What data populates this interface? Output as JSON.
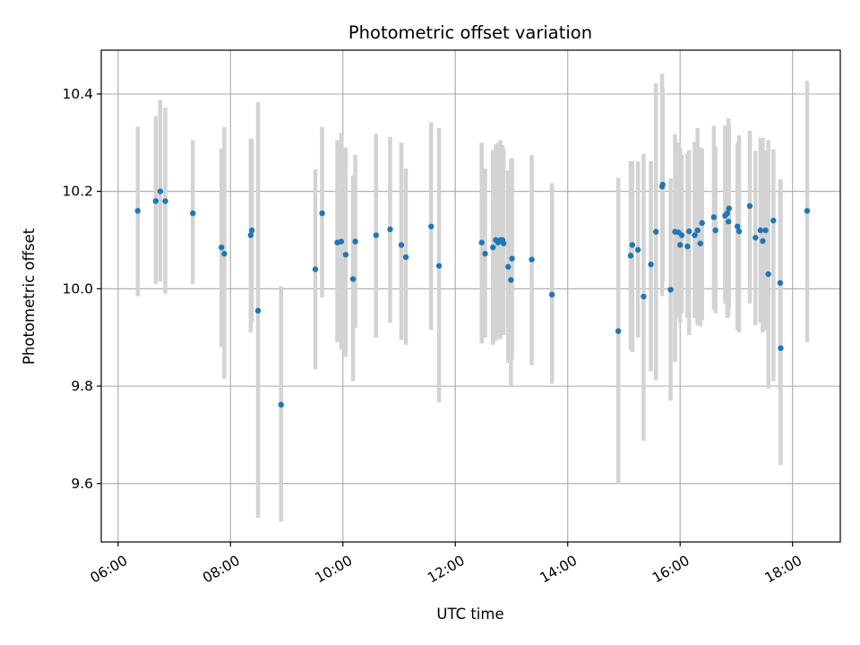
{
  "chart_data": {
    "type": "scatter",
    "title": "Photometric offset variation",
    "xlabel": "UTC time",
    "ylabel": "Photometric offset",
    "x_unit": "hours (UTC)",
    "xlim": [
      5.7,
      18.85
    ],
    "ylim": [
      9.48,
      10.49
    ],
    "grid": true,
    "x_ticks": [
      6,
      8,
      10,
      12,
      14,
      16,
      18
    ],
    "x_tick_labels": [
      "06:00",
      "08:00",
      "10:00",
      "12:00",
      "14:00",
      "16:00",
      "18:00"
    ],
    "y_ticks": [
      9.6,
      9.8,
      10.0,
      10.2,
      10.4
    ],
    "y_tick_labels": [
      "9.6",
      "9.8",
      "10.0",
      "10.2",
      "10.4"
    ],
    "colors": {
      "point": "#1f77b4",
      "errorbar": "#d3d3d3",
      "grid": "#b0b0b0"
    },
    "series": [
      {
        "x": [
          6.35,
          6.67,
          6.75,
          6.84,
          7.33,
          7.84,
          7.89,
          8.36,
          8.38,
          8.49,
          8.9,
          9.51,
          9.63,
          9.9,
          9.97,
          10.05,
          10.18,
          10.22,
          10.59,
          10.84,
          11.04,
          11.12,
          11.57,
          11.71,
          12.47,
          12.53,
          12.67,
          12.72,
          12.76,
          12.8,
          12.84,
          12.86,
          12.94,
          12.99,
          13.01,
          13.36,
          13.72,
          14.9,
          15.12,
          15.15,
          15.25,
          15.35,
          15.48,
          15.57,
          15.68,
          15.69,
          15.83,
          15.91,
          15.97,
          16.0,
          16.03,
          16.13,
          16.16,
          16.26,
          16.31,
          16.36,
          16.39,
          16.6,
          16.63,
          16.8,
          16.84,
          16.86,
          16.87,
          17.02,
          17.05,
          17.24,
          17.34,
          17.43,
          17.47,
          17.52,
          17.57,
          17.66,
          17.78,
          17.79,
          18.26
        ],
        "y": [
          10.16,
          10.18,
          10.2,
          10.18,
          10.155,
          10.085,
          10.072,
          10.11,
          10.12,
          9.955,
          9.762,
          10.04,
          10.155,
          10.095,
          10.097,
          10.07,
          10.02,
          10.097,
          10.11,
          10.122,
          10.09,
          10.065,
          10.128,
          10.047,
          10.095,
          10.072,
          10.085,
          10.1,
          10.095,
          10.1,
          10.1,
          10.093,
          10.045,
          10.018,
          10.062,
          10.06,
          9.988,
          9.913,
          10.068,
          10.09,
          10.08,
          9.984,
          10.05,
          10.117,
          10.21,
          10.214,
          9.998,
          10.117,
          10.116,
          10.09,
          10.11,
          10.087,
          10.118,
          10.11,
          10.12,
          10.093,
          10.135,
          10.147,
          10.12,
          10.15,
          10.155,
          10.138,
          10.165,
          10.128,
          10.118,
          10.17,
          10.105,
          10.12,
          10.098,
          10.12,
          10.03,
          10.14,
          10.012,
          9.878,
          10.16
        ],
        "yerr_low": [
          9.985,
          10.01,
          10.015,
          9.99,
          10.01,
          9.88,
          9.815,
          9.91,
          9.93,
          9.53,
          9.522,
          9.835,
          9.982,
          9.89,
          9.875,
          9.86,
          9.81,
          9.92,
          9.9,
          9.93,
          9.895,
          9.885,
          9.915,
          9.767,
          9.888,
          9.9,
          9.885,
          9.893,
          9.902,
          9.897,
          9.91,
          9.905,
          9.848,
          9.8,
          9.855,
          9.843,
          9.805,
          9.6,
          9.875,
          9.87,
          9.9,
          9.688,
          9.83,
          9.812,
          9.985,
          10.015,
          9.77,
          9.85,
          9.94,
          9.93,
          9.95,
          9.94,
          9.905,
          9.94,
          9.925,
          9.923,
          9.935,
          9.957,
          9.95,
          9.97,
          9.94,
          9.945,
          9.96,
          9.915,
          9.91,
          9.97,
          9.925,
          9.93,
          9.91,
          9.915,
          9.795,
          9.81,
          9.79,
          9.638,
          9.89
        ],
        "yerr_high": [
          10.333,
          10.355,
          10.387,
          10.372,
          10.305,
          10.288,
          10.332,
          10.308,
          10.307,
          10.383,
          10.005,
          10.245,
          10.332,
          10.305,
          10.32,
          10.29,
          10.233,
          10.275,
          10.318,
          10.312,
          10.3,
          10.247,
          10.342,
          10.33,
          10.3,
          10.247,
          10.285,
          10.297,
          10.3,
          10.305,
          10.295,
          10.287,
          10.243,
          10.267,
          10.268,
          10.275,
          10.217,
          10.228,
          10.262,
          10.262,
          10.262,
          10.277,
          10.262,
          10.422,
          10.442,
          10.413,
          10.227,
          10.317,
          10.3,
          10.29,
          10.275,
          10.278,
          10.285,
          10.302,
          10.33,
          10.29,
          10.288,
          10.335,
          10.293,
          10.335,
          10.33,
          10.35,
          10.34,
          10.3,
          10.315,
          10.325,
          10.283,
          10.31,
          10.31,
          10.283,
          10.305,
          10.287,
          10.225,
          10.225,
          10.427
        ]
      }
    ]
  }
}
